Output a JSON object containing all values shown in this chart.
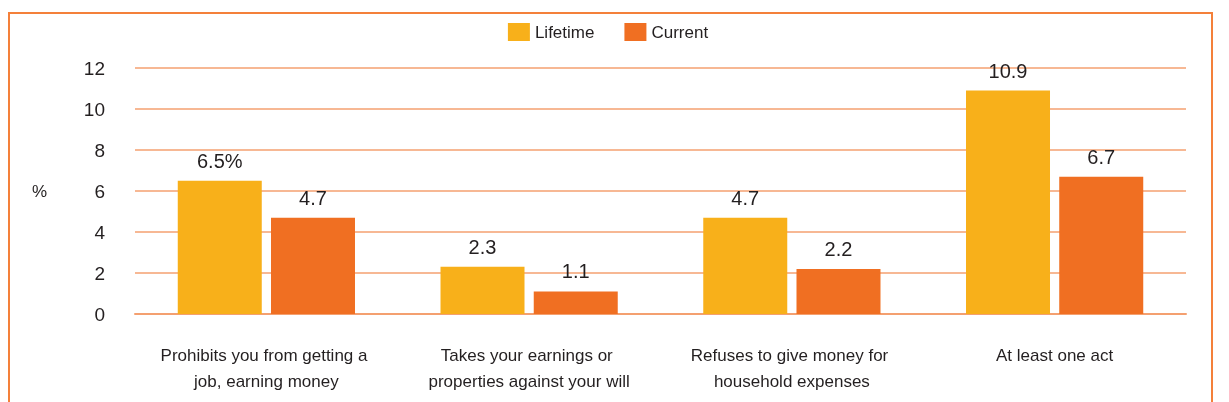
{
  "chart_data": {
    "type": "bar",
    "ylabel": "%",
    "categories": [
      "Prohibits you from getting a job, earning money",
      "Takes your earnings or properties against your will",
      "Refuses to give money for household expenses",
      "At least one act"
    ],
    "series": [
      {
        "name": "Lifetime",
        "color": "#f8b01a",
        "values": [
          6.5,
          2.3,
          4.7,
          10.9
        ],
        "value_labels": [
          "6.5%",
          "2.3",
          "4.7",
          "10.9"
        ]
      },
      {
        "name": "Current",
        "color": "#f06f22",
        "values": [
          4.7,
          1.1,
          2.2,
          6.7
        ],
        "value_labels": [
          "4.7",
          "1.1",
          "2.2",
          "6.7"
        ]
      }
    ],
    "ylim": [
      0,
      12
    ],
    "yticks": [
      0,
      2,
      4,
      6,
      8,
      10,
      12
    ],
    "grid": "y",
    "legend": "top"
  }
}
